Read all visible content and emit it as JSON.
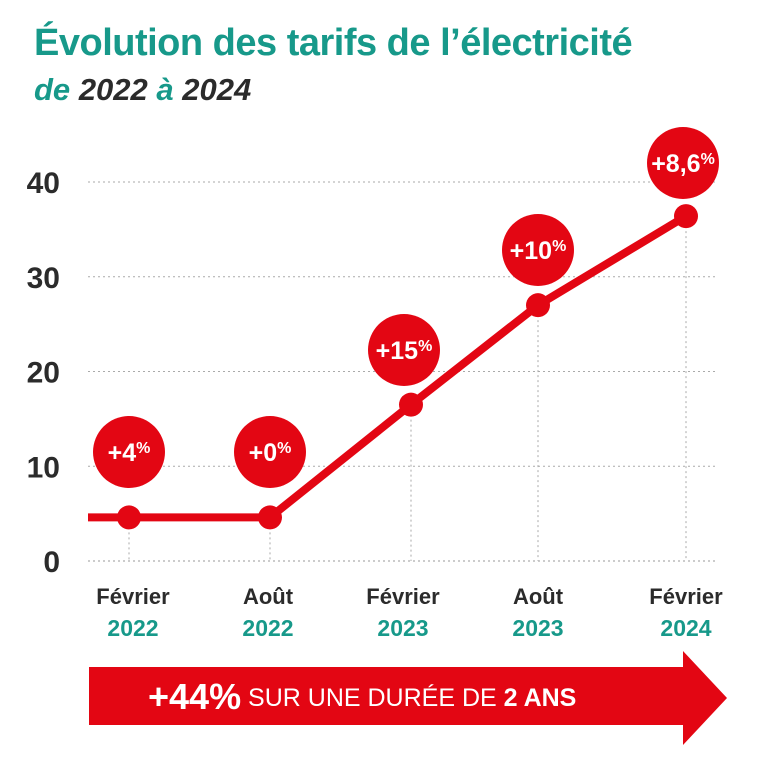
{
  "colors": {
    "accent": "#17998a",
    "line": "#e30613",
    "text": "#2b2b2b"
  },
  "title": "Évolution des tarifs de l’électricité",
  "subtitle": {
    "part1": "de",
    "part2": "2022",
    "part3": "à",
    "part4": "2024"
  },
  "chart_data": {
    "type": "line",
    "title": "Évolution des tarifs de l’électricité de 2022 à 2024",
    "categories": [
      {
        "month": "Février",
        "year": "2022"
      },
      {
        "month": "Août",
        "year": "2022"
      },
      {
        "month": "Février",
        "year": "2023"
      },
      {
        "month": "Août",
        "year": "2023"
      },
      {
        "month": "Février",
        "year": "2024"
      }
    ],
    "values": [
      4.6,
      4.6,
      16.5,
      27.0,
      36.4
    ],
    "data_labels": [
      "+4%",
      "+0%",
      "+15%",
      "+10%",
      "+8,6%"
    ],
    "yticks": [
      0,
      10,
      20,
      30,
      40
    ],
    "ylim": [
      0,
      42
    ],
    "grid": "horizontal dotted"
  },
  "banner": {
    "big": "+44%",
    "middle": "SUR UNE DURÉE DE",
    "bold": "2 ANS"
  }
}
